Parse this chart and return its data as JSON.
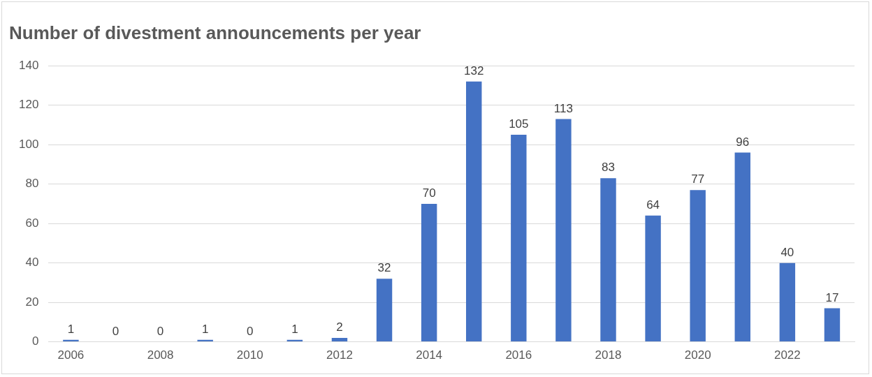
{
  "chart_data": {
    "type": "bar",
    "title": "Number of divestment announcements per year",
    "categories": [
      "2006",
      null,
      "2008",
      null,
      "2010",
      null,
      "2012",
      null,
      "2014",
      null,
      "2016",
      null,
      "2018",
      null,
      "2020",
      null,
      "2022",
      null
    ],
    "values": [
      1,
      0,
      0,
      1,
      0,
      1,
      2,
      32,
      70,
      132,
      105,
      113,
      83,
      64,
      77,
      96,
      40,
      17
    ],
    "color": "#4472c4",
    "ylim": [
      0,
      140
    ],
    "yticks": [
      0,
      20,
      40,
      60,
      80,
      100,
      120,
      140
    ],
    "grid": "y",
    "data_labels": true
  }
}
